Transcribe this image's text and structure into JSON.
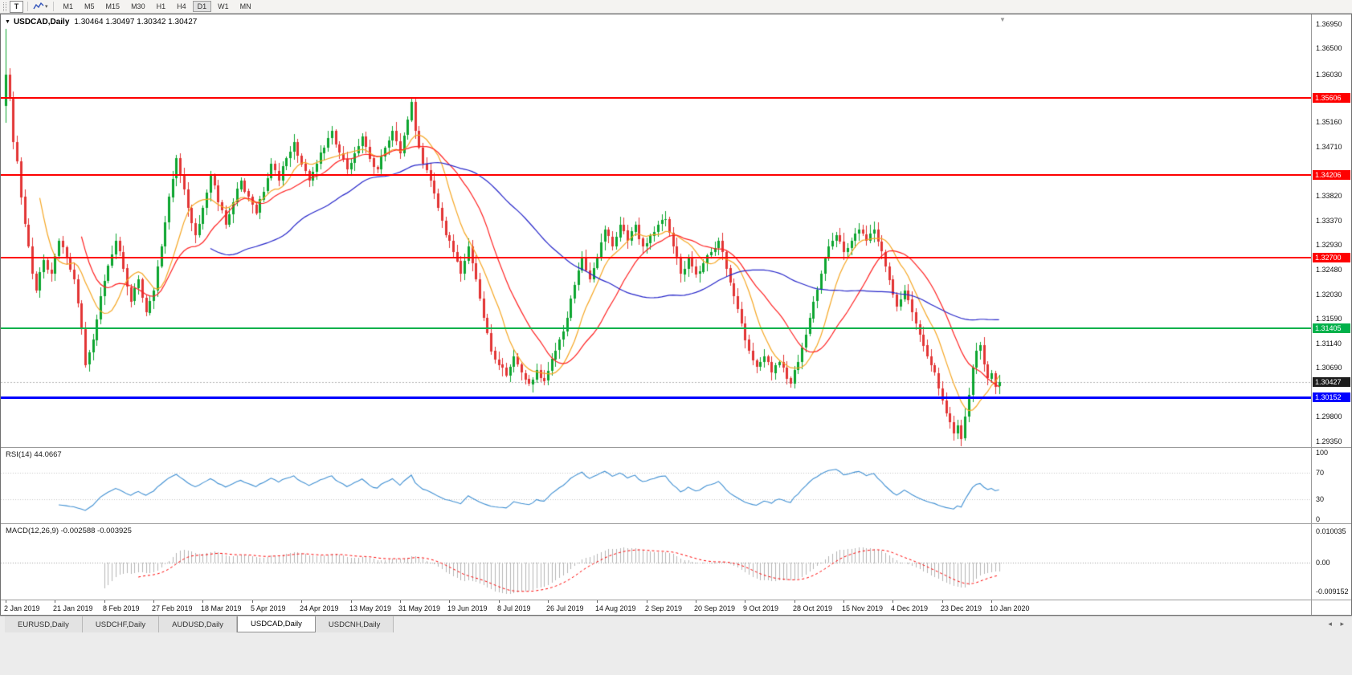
{
  "colors": {
    "up": "#0ca52f",
    "down": "#e23434",
    "ma_fast": "#f5a623",
    "ma_mid": "#ff2020",
    "ma_slow": "#2626c9",
    "bid_line": "#b0b0b0",
    "badge_current_bg": "#1c1c1c",
    "rsi_line": "#3f8fd2",
    "rsi_guide": "#c4c4c4",
    "macd_hist": "#b4b4b4",
    "macd_signal": "#fe0000",
    "macd_zero": "#9a9a9a"
  },
  "toolbar": {
    "tool_button_label": "T",
    "caret_icon": "▾",
    "timeframes": [
      {
        "label": "M1",
        "active": false
      },
      {
        "label": "M5",
        "active": false
      },
      {
        "label": "M15",
        "active": false
      },
      {
        "label": "M30",
        "active": false
      },
      {
        "label": "H1",
        "active": false
      },
      {
        "label": "H4",
        "active": false
      },
      {
        "label": "D1",
        "active": true
      },
      {
        "label": "W1",
        "active": false
      },
      {
        "label": "MN",
        "active": false
      }
    ]
  },
  "chart": {
    "menu_icon": "▼",
    "shift_marker_icon": "▼",
    "title_symbol": "USDCAD,Daily",
    "title_ohlc": "1.30464 1.30497 1.30342 1.30427",
    "current_price": 1.30427,
    "current_price_label": "1.30427",
    "axis_ticks": [
      "1.36950",
      "1.36500",
      "1.36030",
      "1.35160",
      "1.34710",
      "1.33820",
      "1.33370",
      "1.32930",
      "1.32480",
      "1.32030",
      "1.31590",
      "1.31140",
      "1.30690",
      "1.29800",
      "1.29350"
    ],
    "levels": [
      {
        "label": "1.35606",
        "price": 1.35606,
        "color": "#fe0000",
        "thickness": 2
      },
      {
        "label": "1.34206",
        "price": 1.34206,
        "color": "#fe0000",
        "thickness": 2
      },
      {
        "label": "1.32700",
        "price": 1.327,
        "color": "#fe0000",
        "thickness": 2
      },
      {
        "label": "1.31405",
        "price": 1.31405,
        "color": "#00b14a",
        "thickness": 2
      },
      {
        "label": "1.30152",
        "price": 1.30152,
        "color": "#0000fe",
        "thickness": 3
      }
    ],
    "dates": [
      "2 Jan 2019",
      "21 Jan 2019",
      "8 Feb 2019",
      "27 Feb 2019",
      "18 Mar 2019",
      "5 Apr 2019",
      "24 Apr 2019",
      "13 May 2019",
      "31 May 2019",
      "19 Jun 2019",
      "8 Jul 2019",
      "26 Jul 2019",
      "14 Aug 2019",
      "2 Sep 2019",
      "20 Sep 2019",
      "9 Oct 2019",
      "28 Oct 2019",
      "15 Nov 2019",
      "4 Dec 2019",
      "23 Dec 2019",
      "10 Jan 2020"
    ]
  },
  "rsi": {
    "label": "RSI(14) 44.0667",
    "period": 14,
    "value": 44.0667,
    "axis": [
      "100",
      "70",
      "30",
      "0"
    ],
    "guide_levels": [
      70,
      30
    ]
  },
  "macd": {
    "label": "MACD(12,26,9) -0.002588 -0.003925",
    "fast": 12,
    "slow": 26,
    "signal": 9,
    "macd_value": -0.002588,
    "signal_value": -0.003925,
    "axis_top": "0.010035",
    "axis_top_value": 0.010035,
    "axis_zero": "0.00",
    "axis_bottom": "-0.009152",
    "axis_bottom_value": -0.009152
  },
  "tabbar": {
    "scroll_left_icon": "◂",
    "scroll_right_icon": "▸",
    "tabs": [
      {
        "label": "EURUSD,Daily",
        "active": false
      },
      {
        "label": "USDCHF,Daily",
        "active": false
      },
      {
        "label": "AUDUSD,Daily",
        "active": false
      },
      {
        "label": "USDCAD,Daily",
        "active": true
      },
      {
        "label": "USDCNH,Daily",
        "active": false
      }
    ]
  },
  "chart_data": {
    "type": "candlestick",
    "symbol": "USDCAD",
    "timeframe": "Daily",
    "last_ohlc": {
      "open": 1.30464,
      "high": 1.30497,
      "low": 1.30342,
      "close": 1.30427
    },
    "n_candles": 263,
    "first_candle": {
      "o": 1.3545,
      "h": 1.3686,
      "l": 1.3515,
      "c": 1.3602
    },
    "price_scale": {
      "top": 1.3712,
      "bottom": 1.2925
    },
    "noise_amp": 0.0012,
    "wick_base": 0.0003,
    "wick_amp": 0.0013,
    "close_path": [
      [
        0,
        1.3602
      ],
      [
        1,
        1.356
      ],
      [
        2,
        1.348
      ],
      [
        3,
        1.3445
      ],
      [
        4,
        1.338
      ],
      [
        5,
        1.333
      ],
      [
        6,
        1.329
      ],
      [
        7,
        1.324
      ],
      [
        8,
        1.321
      ],
      [
        10,
        1.3265
      ],
      [
        12,
        1.324
      ],
      [
        14,
        1.33
      ],
      [
        16,
        1.327
      ],
      [
        18,
        1.323
      ],
      [
        20,
        1.314
      ],
      [
        21,
        1.3075
      ],
      [
        23,
        1.312
      ],
      [
        25,
        1.32
      ],
      [
        27,
        1.3255
      ],
      [
        29,
        1.33
      ],
      [
        31,
        1.325
      ],
      [
        33,
        1.319
      ],
      [
        35,
        1.323
      ],
      [
        37,
        1.317
      ],
      [
        39,
        1.321
      ],
      [
        41,
        1.329
      ],
      [
        43,
        1.338
      ],
      [
        45,
        1.345
      ],
      [
        46,
        1.342
      ],
      [
        48,
        1.336
      ],
      [
        50,
        1.331
      ],
      [
        52,
        1.336
      ],
      [
        54,
        1.342
      ],
      [
        56,
        1.337
      ],
      [
        58,
        1.333
      ],
      [
        60,
        1.337
      ],
      [
        62,
        1.341
      ],
      [
        64,
        1.338
      ],
      [
        66,
        1.335
      ],
      [
        68,
        1.339
      ],
      [
        70,
        1.344
      ],
      [
        72,
        1.341
      ],
      [
        74,
        1.345
      ],
      [
        76,
        1.348
      ],
      [
        78,
        1.344
      ],
      [
        80,
        1.341
      ],
      [
        82,
        1.344
      ],
      [
        84,
        1.347
      ],
      [
        86,
        1.35
      ],
      [
        88,
        1.346
      ],
      [
        90,
        1.343
      ],
      [
        92,
        1.346
      ],
      [
        94,
        1.349
      ],
      [
        96,
        1.345
      ],
      [
        98,
        1.343
      ],
      [
        100,
        1.347
      ],
      [
        102,
        1.35
      ],
      [
        104,
        1.346
      ],
      [
        106,
        1.352
      ],
      [
        107,
        1.3553
      ],
      [
        108,
        1.35
      ],
      [
        110,
        1.344
      ],
      [
        112,
        1.341
      ],
      [
        114,
        1.336
      ],
      [
        116,
        1.331
      ],
      [
        118,
        1.328
      ],
      [
        120,
        1.324
      ],
      [
        122,
        1.329
      ],
      [
        124,
        1.323
      ],
      [
        126,
        1.316
      ],
      [
        128,
        1.31
      ],
      [
        130,
        1.3075
      ],
      [
        132,
        1.3055
      ],
      [
        134,
        1.309
      ],
      [
        136,
        1.306
      ],
      [
        138,
        1.304
      ],
      [
        140,
        1.3065
      ],
      [
        142,
        1.3045
      ],
      [
        144,
        1.3085
      ],
      [
        146,
        1.312
      ],
      [
        148,
        1.316
      ],
      [
        150,
        1.322
      ],
      [
        152,
        1.327
      ],
      [
        154,
        1.323
      ],
      [
        156,
        1.327
      ],
      [
        158,
        1.332
      ],
      [
        160,
        1.329
      ],
      [
        162,
        1.333
      ],
      [
        164,
        1.33
      ],
      [
        166,
        1.333
      ],
      [
        168,
        1.329
      ],
      [
        170,
        1.331
      ],
      [
        172,
        1.333
      ],
      [
        174,
        1.334
      ],
      [
        176,
        1.329
      ],
      [
        178,
        1.324
      ],
      [
        180,
        1.327
      ],
      [
        182,
        1.324
      ],
      [
        184,
        1.326
      ],
      [
        186,
        1.328
      ],
      [
        188,
        1.33
      ],
      [
        190,
        1.325
      ],
      [
        192,
        1.32
      ],
      [
        194,
        1.315
      ],
      [
        196,
        1.31
      ],
      [
        198,
        1.307
      ],
      [
        200,
        1.309
      ],
      [
        202,
        1.306
      ],
      [
        204,
        1.308
      ],
      [
        206,
        1.305
      ],
      [
        207,
        1.304
      ],
      [
        209,
        1.308
      ],
      [
        211,
        1.313
      ],
      [
        213,
        1.319
      ],
      [
        215,
        1.324
      ],
      [
        217,
        1.329
      ],
      [
        219,
        1.331
      ],
      [
        221,
        1.328
      ],
      [
        223,
        1.33
      ],
      [
        225,
        1.332
      ],
      [
        227,
        1.33
      ],
      [
        229,
        1.332
      ],
      [
        231,
        1.328
      ],
      [
        233,
        1.323
      ],
      [
        235,
        1.318
      ],
      [
        237,
        1.321
      ],
      [
        239,
        1.317
      ],
      [
        241,
        1.313
      ],
      [
        243,
        1.309
      ],
      [
        245,
        1.306
      ],
      [
        247,
        1.301
      ],
      [
        249,
        1.297
      ],
      [
        250,
        1.295
      ],
      [
        251,
        1.2965
      ],
      [
        252,
        1.294
      ],
      [
        253,
        1.298
      ],
      [
        254,
        1.302
      ],
      [
        255,
        1.307
      ],
      [
        256,
        1.31
      ],
      [
        257,
        1.311
      ],
      [
        258,
        1.3075
      ],
      [
        259,
        1.305
      ],
      [
        260,
        1.306
      ],
      [
        261,
        1.3035
      ],
      [
        262,
        1.30427
      ]
    ],
    "moving_averages": [
      {
        "period": 10,
        "color_key": "ma_fast"
      },
      {
        "period": 21,
        "color_key": "ma_mid"
      },
      {
        "period": 55,
        "color_key": "ma_slow"
      }
    ],
    "horizontal_levels": [
      {
        "price": 1.35606,
        "kind": "resistance"
      },
      {
        "price": 1.34206,
        "kind": "resistance"
      },
      {
        "price": 1.327,
        "kind": "resistance"
      },
      {
        "price": 1.31405,
        "kind": "support"
      },
      {
        "price": 1.30152,
        "kind": "support"
      }
    ],
    "indicators": [
      {
        "name": "RSI",
        "period": 14,
        "last_value": 44.0667
      },
      {
        "name": "MACD",
        "params": [
          12,
          26,
          9
        ],
        "last_values": [
          -0.002588,
          -0.003925
        ]
      }
    ]
  }
}
